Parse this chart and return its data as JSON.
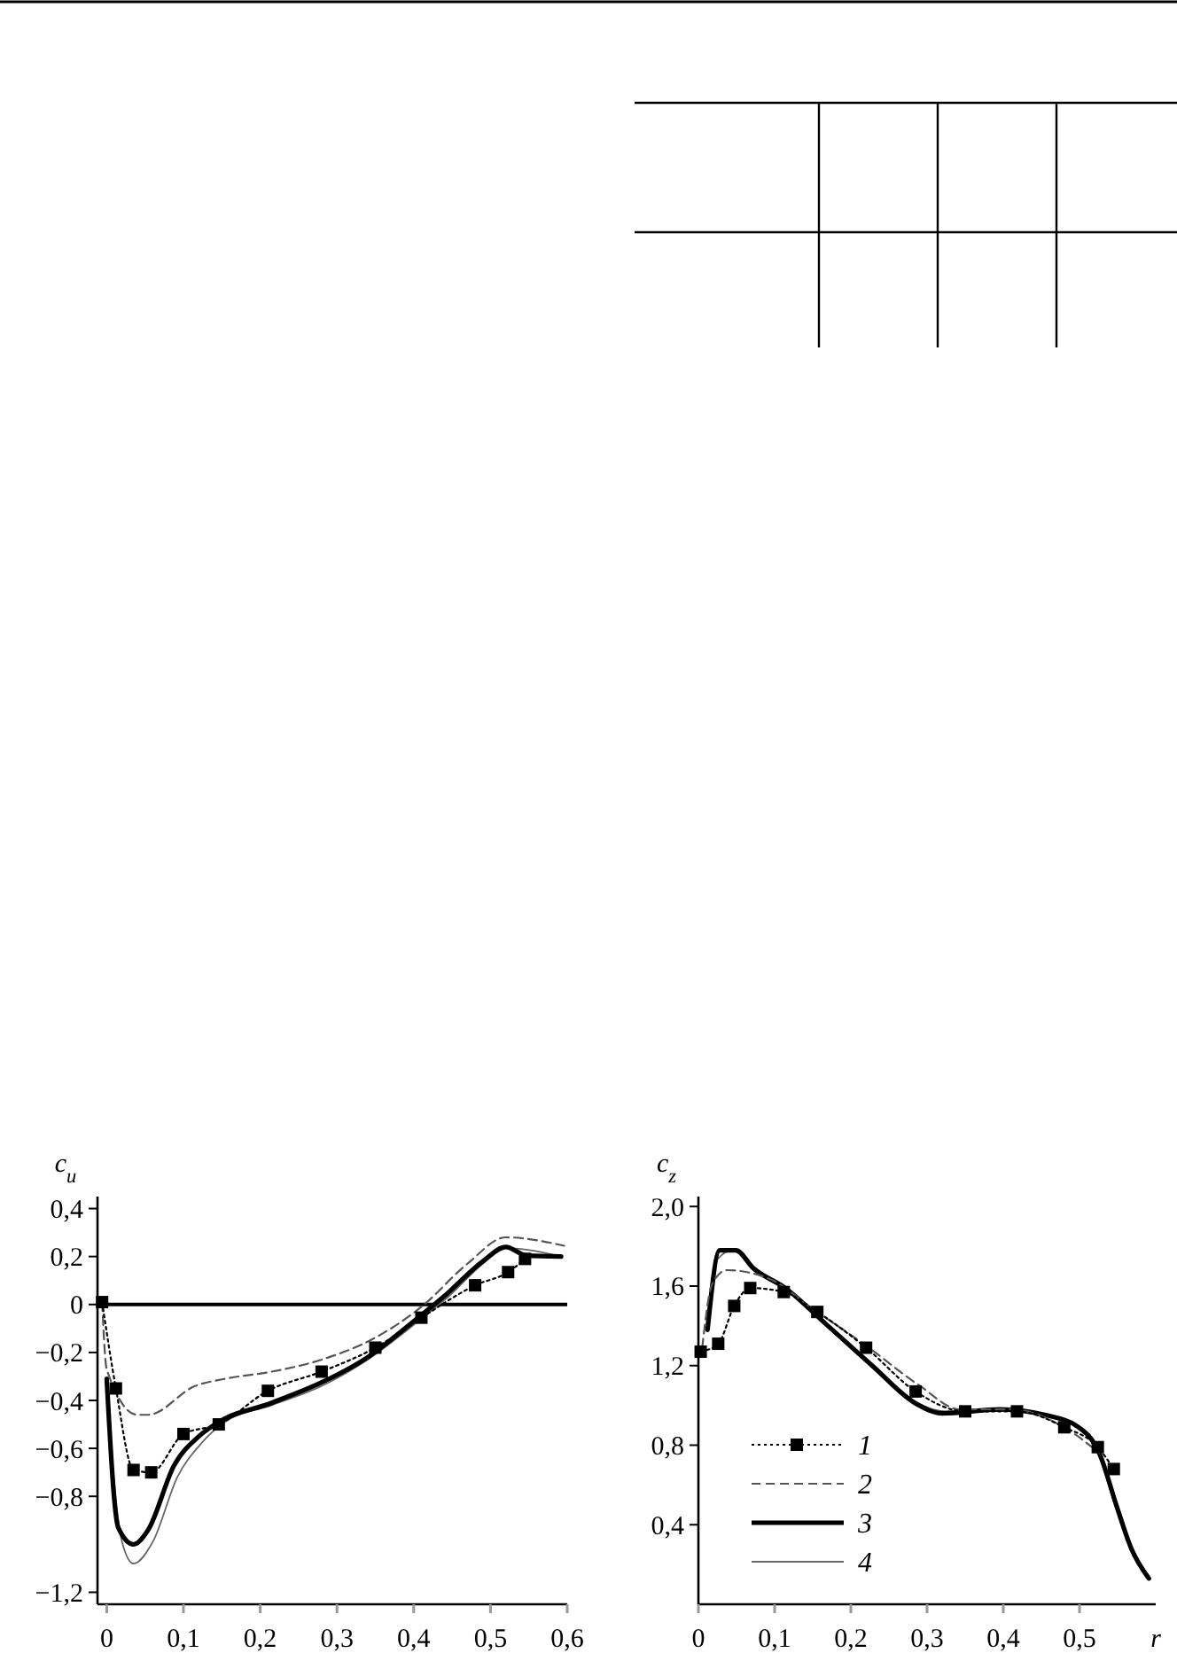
{
  "chart_data": [
    {
      "type": "line",
      "ylabel": "c$_{u}$",
      "xlim": [
        -0.012,
        0.6
      ],
      "ylim": [
        -1.25,
        0.45
      ],
      "xticks": [
        {
          "value": 0,
          "label": "0"
        },
        {
          "value": 0.1,
          "label": "0,1"
        },
        {
          "value": 0.2,
          "label": "0,2"
        },
        {
          "value": 0.3,
          "label": "0,3"
        },
        {
          "value": 0.4,
          "label": "0,4"
        },
        {
          "value": 0.5,
          "label": "0,5"
        },
        {
          "value": 0.6,
          "label": "0,6"
        }
      ],
      "yticks": [
        {
          "value": 0.4,
          "label": "0,4"
        },
        {
          "value": 0.2,
          "label": "0,2"
        },
        {
          "value": 0,
          "label": "0"
        },
        {
          "value": -0.2,
          "label": "−0,2"
        },
        {
          "value": -0.4,
          "label": "−0,4"
        },
        {
          "value": -0.6,
          "label": "−0,6"
        },
        {
          "value": -0.8,
          "label": "−0,8"
        },
        {
          "value": -1.2,
          "label": "−1,2"
        }
      ],
      "ref_lines": [
        {
          "axis": "y",
          "value": 0,
          "color": "#000000"
        }
      ],
      "legend": false,
      "grid": false,
      "series": [
        {
          "color": "#000000",
          "line_style": "dotted",
          "marker": "square",
          "x": [
            -0.006,
            0.012,
            0.035,
            0.058,
            0.1,
            0.146,
            0.21,
            0.28,
            0.35,
            0.41,
            0.48,
            0.523,
            0.545
          ],
          "values": [
            0.01,
            -0.35,
            -0.69,
            -0.7,
            -0.54,
            -0.5,
            -0.36,
            -0.28,
            -0.18,
            -0.055,
            0.08,
            0.135,
            0.19
          ]
        },
        {
          "color": "#555555",
          "line_style": "dashed",
          "marker": "none",
          "x": [
            -0.006,
            0,
            0.04,
            0.054,
            0.115,
            0.154,
            0.215,
            0.28,
            0.346,
            0.41,
            0.47,
            0.52,
            0.596
          ],
          "values": [
            0.01,
            -0.27,
            -0.46,
            -0.46,
            -0.34,
            -0.31,
            -0.28,
            -0.23,
            -0.145,
            -0.01,
            0.17,
            0.28,
            0.245
          ]
        },
        {
          "color": "#000000",
          "line_style": "solid",
          "marker": "none",
          "x": [
            0,
            0.015,
            0.035,
            0.054,
            0.088,
            0.12,
            0.146,
            0.215,
            0.28,
            0.34,
            0.4,
            0.44,
            0.49,
            0.52,
            0.546,
            0.592
          ],
          "values": [
            -0.31,
            -0.93,
            -1.0,
            -0.94,
            -0.67,
            -0.55,
            -0.49,
            -0.41,
            -0.325,
            -0.22,
            -0.07,
            0.035,
            0.18,
            0.24,
            0.205,
            0.2
          ]
        },
        {
          "color": "#666666",
          "line_style": "solid",
          "marker": "none",
          "x": [
            0,
            0.02,
            0.035,
            0.06,
            0.092,
            0.123,
            0.154,
            0.215,
            0.28,
            0.34,
            0.4,
            0.446,
            0.49,
            0.52,
            0.592
          ],
          "values": [
            -0.36,
            -0.99,
            -1.08,
            -0.99,
            -0.72,
            -0.58,
            -0.49,
            -0.42,
            -0.34,
            -0.23,
            -0.085,
            0.035,
            0.17,
            0.235,
            0.2
          ]
        }
      ]
    },
    {
      "type": "line",
      "ylabel": "c$_{z}$",
      "xlabel": "r",
      "xlim": [
        0,
        0.6
      ],
      "ylim": [
        0,
        2.05
      ],
      "xticks": [
        {
          "value": 0,
          "label": "0"
        },
        {
          "value": 0.1,
          "label": "0,1"
        },
        {
          "value": 0.2,
          "label": "0,2"
        },
        {
          "value": 0.3,
          "label": "0,3"
        },
        {
          "value": 0.4,
          "label": "0,4"
        },
        {
          "value": 0.5,
          "label": "0,5"
        }
      ],
      "yticks": [
        {
          "value": 2.0,
          "label": "2,0"
        },
        {
          "value": 1.6,
          "label": "1,6"
        },
        {
          "value": 1.2,
          "label": "1,2"
        },
        {
          "value": 0.8,
          "label": "0,8"
        },
        {
          "value": 0.4,
          "label": "0,4"
        }
      ],
      "legend": "bottom left",
      "grid": false,
      "series": [
        {
          "name": "1",
          "color": "#000000",
          "line_style": "dotted",
          "marker": "square",
          "x": [
            0.003,
            0.026,
            0.047,
            0.068,
            0.112,
            0.156,
            0.22,
            0.285,
            0.35,
            0.418,
            0.48,
            0.524,
            0.545
          ],
          "values": [
            1.27,
            1.31,
            1.5,
            1.59,
            1.57,
            1.47,
            1.29,
            1.07,
            0.97,
            0.97,
            0.89,
            0.79,
            0.68
          ]
        },
        {
          "name": "2",
          "color": "#555555",
          "line_style": "dashed",
          "marker": "none",
          "x": [
            0.005,
            0.018,
            0.037,
            0.091,
            0.152,
            0.22,
            0.29,
            0.343,
            0.41,
            0.488,
            0.526
          ],
          "values": [
            1.29,
            1.61,
            1.68,
            1.64,
            1.48,
            1.3,
            1.1,
            0.98,
            0.98,
            0.87,
            0.76
          ]
        },
        {
          "name": "3",
          "color": "#000000",
          "line_style": "solid",
          "marker": "none",
          "x": [
            0.012,
            0.028,
            0.049,
            0.072,
            0.114,
            0.167,
            0.228,
            0.285,
            0.32,
            0.396,
            0.457,
            0.495,
            0.526,
            0.549,
            0.568,
            0.591
          ],
          "values": [
            1.38,
            1.78,
            1.78,
            1.69,
            1.59,
            1.41,
            1.2,
            1.01,
            0.96,
            0.98,
            0.95,
            0.9,
            0.76,
            0.49,
            0.28,
            0.13
          ]
        },
        {
          "name": "4",
          "color": "#666666",
          "line_style": "solid",
          "marker": "none",
          "x": [
            0.011,
            0.024,
            0.045,
            0.076,
            0.118,
            0.171,
            0.232,
            0.288,
            0.324,
            0.396,
            0.457,
            0.495,
            0.526,
            0.549,
            0.568,
            0.591
          ],
          "values": [
            1.41,
            1.73,
            1.78,
            1.67,
            1.58,
            1.39,
            1.19,
            1.01,
            0.97,
            0.98,
            0.95,
            0.9,
            0.74,
            0.47,
            0.27,
            0.13
          ]
        }
      ]
    }
  ]
}
